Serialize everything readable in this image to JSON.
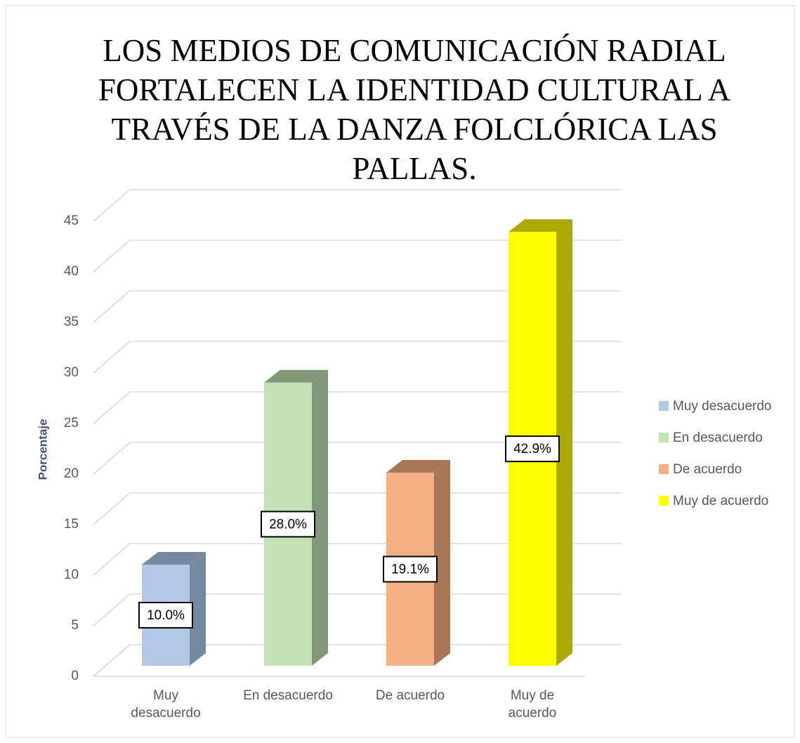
{
  "chart_data": {
    "type": "bar3d",
    "title": "LOS MEDIOS DE COMUNICACIÓN RADIAL\nFORTALECEN LA IDENTIDAD CULTURAL A\nTRAVÉS DE LA DANZA FOLCLÓRICA LAS\nPALLAS.",
    "y_label": "Porcentaje",
    "categories": [
      "Muy\ndesacuerdo",
      "En desacuerdo",
      "De acuerdo",
      "Muy de\nacuerdo"
    ],
    "values": [
      10,
      28,
      19.1,
      42.9
    ],
    "value_labels": [
      "10.0%",
      "28.0%",
      "19.1%",
      "42.9%"
    ],
    "colors": [
      "#b4c7e7",
      "#c5e0b4",
      "#f4b183",
      "#ffff00"
    ],
    "side_colors": [
      "#7888a0",
      "#84967a",
      "#a87856",
      "#aaaa00"
    ],
    "ylim": [
      0,
      45
    ],
    "yticks": [
      0,
      5,
      10,
      15,
      20,
      25,
      30,
      35,
      40,
      45
    ],
    "grid": true,
    "legend": "right"
  }
}
